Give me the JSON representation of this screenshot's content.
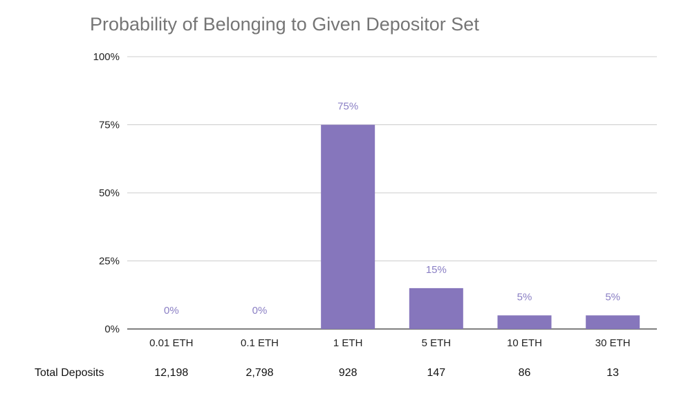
{
  "chart_data": {
    "type": "bar",
    "title": "Probability of Belonging to Given Depositor Set",
    "categories": [
      "0.01 ETH",
      "0.1 ETH",
      "1 ETH",
      "5 ETH",
      "10 ETH",
      "30 ETH"
    ],
    "series": [
      {
        "values": [
          0,
          0,
          75,
          15,
          5,
          5
        ]
      }
    ],
    "data_labels": [
      "0%",
      "0%",
      "75%",
      "15%",
      "5%",
      "5%"
    ],
    "yticks": [
      "0%",
      "25%",
      "50%",
      "75%",
      "100%"
    ],
    "ylim": [
      0,
      100
    ],
    "grid": true,
    "legend": "none",
    "bar_color": "#8676bc",
    "label_color": "#8a7fc4",
    "table_row": {
      "label": "Total Deposits",
      "values": [
        "12,198",
        "2,798",
        "928",
        "147",
        "86",
        "13"
      ]
    }
  }
}
